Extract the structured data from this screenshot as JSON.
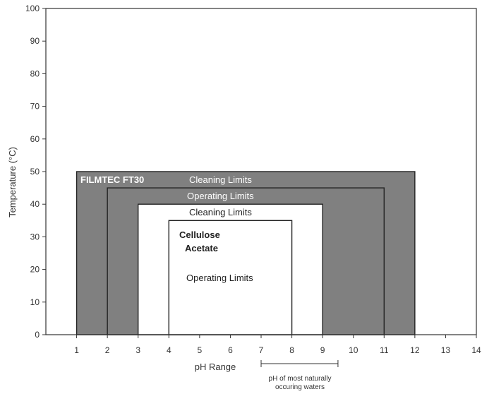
{
  "chart_data": {
    "type": "area",
    "title": "",
    "xlabel": "pH Range",
    "ylabel": "Temperature (°C)",
    "xlim": [
      0,
      14
    ],
    "ylim": [
      0,
      100
    ],
    "x_ticks": [
      1,
      2,
      3,
      4,
      5,
      6,
      7,
      8,
      9,
      10,
      11,
      12,
      13,
      14
    ],
    "y_ticks": [
      0,
      10,
      20,
      30,
      40,
      50,
      60,
      70,
      80,
      90,
      100
    ],
    "grid": false,
    "regions": [
      {
        "key": "ft30-cleaning",
        "x_range": [
          1,
          12
        ],
        "y_range": [
          0,
          50
        ],
        "fill": "#808080",
        "stroke": "#222222"
      },
      {
        "key": "ft30-operating",
        "x_range": [
          2,
          11
        ],
        "y_range": [
          0,
          45
        ],
        "fill": "#808080",
        "stroke": "#222222"
      },
      {
        "key": "ca-cleaning",
        "x_range": [
          3,
          9
        ],
        "y_range": [
          0,
          40
        ],
        "fill": "#ffffff",
        "stroke": "#222222"
      },
      {
        "key": "ca-operating",
        "x_range": [
          4,
          8
        ],
        "y_range": [
          0,
          35
        ],
        "fill": "#ffffff",
        "stroke": "#222222"
      }
    ],
    "annotations": {
      "ft30_name": "FILMTEC FT30",
      "ft30_cleaning": "Cleaning Limits",
      "ft30_operating": "Operating Limits",
      "ca_cleaning": "Cleaning Limits",
      "ca_name_line1": "Cellulose",
      "ca_name_line2": "Acetate",
      "ca_operating": "Operating Limits"
    },
    "natural_waters_range": {
      "x_range": [
        7,
        9.5
      ],
      "label_line1": "pH of most naturally",
      "label_line2": "occuring waters"
    }
  }
}
